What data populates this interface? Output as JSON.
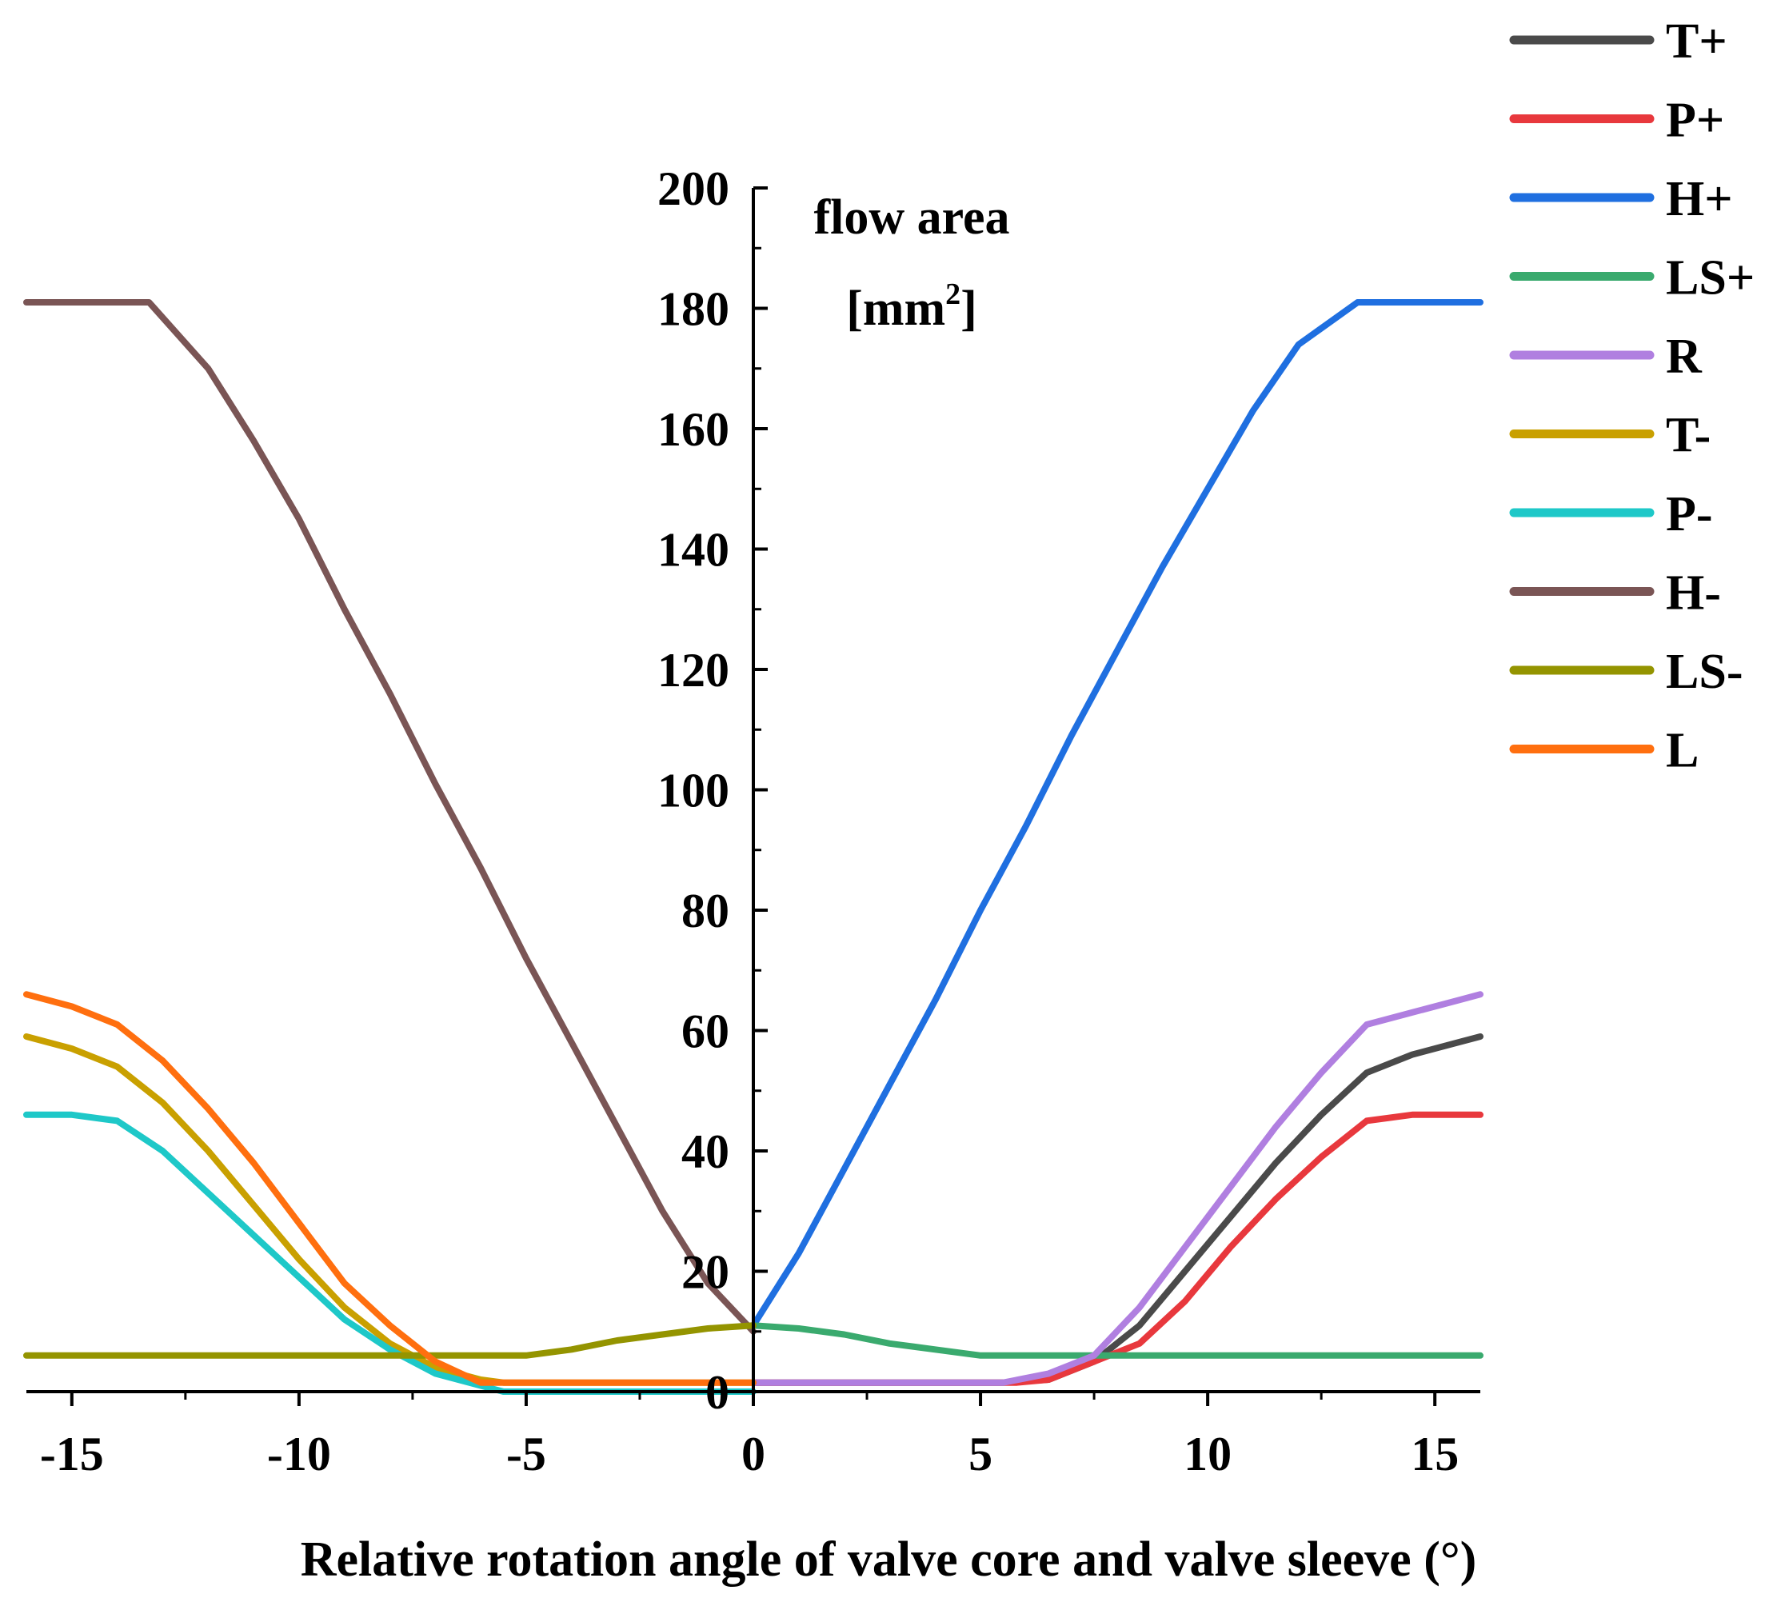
{
  "chart_data": {
    "type": "line",
    "title": "",
    "xlabel": "Relative rotation angle of valve core and valve sleeve (°)",
    "ylabel": "flow area",
    "ylabel_unit": "[mm",
    "ylabel_unit_sup": "2",
    "ylabel_unit_close": "]",
    "xlim": [
      -16,
      16
    ],
    "ylim": [
      0,
      200
    ],
    "x_ticks": [
      -15,
      -10,
      -5,
      0,
      5,
      10,
      15
    ],
    "y_ticks": [
      0,
      20,
      40,
      60,
      80,
      100,
      120,
      140,
      160,
      180,
      200
    ],
    "x_tick_labels": [
      "-15",
      "-10",
      "-5",
      "0",
      "5",
      "10",
      "15"
    ],
    "y_tick_labels": [
      "0",
      "20",
      "40",
      "60",
      "80",
      "100",
      "120",
      "140",
      "160",
      "180",
      "200"
    ],
    "grid": false,
    "legend_position": "top-right outside",
    "series": [
      {
        "name": "T+",
        "color": "#4a4a4a",
        "x": [
          0,
          5.5,
          6.5,
          7.5,
          8.5,
          9.5,
          10.5,
          11.5,
          12.5,
          13.5,
          14.5,
          15.5,
          16
        ],
        "y": [
          1.5,
          1.5,
          2,
          5,
          11,
          20,
          29,
          38,
          46,
          53,
          56,
          58,
          59
        ]
      },
      {
        "name": "P+",
        "color": "#e8383d",
        "x": [
          0,
          5.8,
          6.5,
          7.5,
          8.5,
          9.5,
          10.5,
          11.5,
          12.5,
          13.5,
          14.5,
          15.5,
          16
        ],
        "y": [
          1.5,
          1.5,
          2,
          5,
          8,
          15,
          24,
          32,
          39,
          45,
          46,
          46,
          46
        ]
      },
      {
        "name": "H+",
        "color": "#1f6fe0",
        "x": [
          0,
          1,
          2,
          3,
          4,
          5,
          6,
          7,
          8,
          9,
          10,
          11,
          12,
          13.3,
          14,
          16
        ],
        "y": [
          11,
          23,
          37,
          51,
          65,
          80,
          94,
          109,
          123,
          137,
          150,
          163,
          174,
          181,
          181,
          181
        ]
      },
      {
        "name": "LS+",
        "color": "#3aaa6e",
        "x": [
          0,
          1,
          2,
          3,
          4,
          5,
          5.5,
          16
        ],
        "y": [
          11,
          10.5,
          9.5,
          8,
          7,
          6,
          6,
          6
        ]
      },
      {
        "name": "R",
        "color": "#b07fe0",
        "x": [
          0,
          5.5,
          6.5,
          7.5,
          8.5,
          9.5,
          10.5,
          11.5,
          12.5,
          13.5,
          14.5,
          15.5,
          16
        ],
        "y": [
          1.5,
          1.5,
          3,
          6,
          14,
          24,
          34,
          44,
          53,
          61,
          63,
          65,
          66
        ]
      },
      {
        "name": "T-",
        "color": "#c9a000",
        "x": [
          -16,
          -15,
          -14,
          -13,
          -12,
          -11,
          -10,
          -9,
          -8,
          -7,
          -6,
          -5.5,
          -5,
          0
        ],
        "y": [
          59,
          57,
          54,
          48,
          40,
          31,
          22,
          14,
          8,
          4,
          2,
          1.5,
          1.5,
          1.5
        ]
      },
      {
        "name": "P-",
        "color": "#1ec8c8",
        "x": [
          -16,
          -15,
          -14,
          -13,
          -12,
          -11,
          -10,
          -9,
          -8,
          -7,
          -6,
          -5.5,
          -5,
          0
        ],
        "y": [
          46,
          46,
          45,
          40,
          33,
          26,
          19,
          12,
          7,
          3,
          1,
          0,
          0,
          0
        ]
      },
      {
        "name": "H-",
        "color": "#7a5555",
        "x": [
          -16,
          -15,
          -14,
          -13.3,
          -12,
          -11,
          -10,
          -9,
          -8,
          -7,
          -6,
          -5,
          -4,
          -3,
          -2,
          -1,
          0
        ],
        "y": [
          181,
          181,
          181,
          181,
          170,
          158,
          145,
          130,
          116,
          101,
          87,
          72,
          58,
          44,
          30,
          18,
          10
        ]
      },
      {
        "name": "LS-",
        "color": "#949400",
        "x": [
          -16,
          -10,
          -5.5,
          -5,
          -4,
          -3,
          -2,
          -1,
          0
        ],
        "y": [
          6,
          6,
          6,
          6,
          7,
          8.5,
          9.5,
          10.5,
          11
        ]
      },
      {
        "name": "L",
        "color": "#ff6f0f",
        "x": [
          -16,
          -15,
          -14,
          -13,
          -12,
          -11,
          -10,
          -9,
          -8,
          -7,
          -6,
          -5.5,
          0
        ],
        "y": [
          66,
          64,
          61,
          55,
          47,
          38,
          28,
          18,
          11,
          5,
          1.5,
          1.5,
          1.5
        ]
      }
    ]
  }
}
